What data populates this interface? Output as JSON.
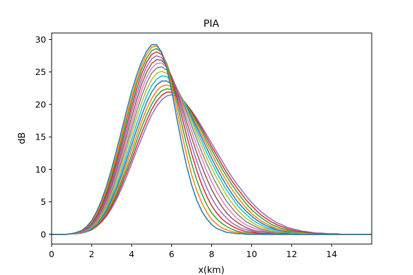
{
  "chart_data": {
    "type": "line",
    "title": "PIA",
    "xlabel": "x(km)",
    "ylabel": "dB",
    "xlim": [
      0,
      16
    ],
    "ylim": [
      -1.5,
      31
    ],
    "xticks": [
      0,
      2,
      4,
      6,
      8,
      10,
      12,
      14
    ],
    "yticks": [
      0,
      5,
      10,
      15,
      20,
      25,
      30
    ],
    "grid": false,
    "legend": "none",
    "x_step": 0.25,
    "x": [
      0,
      0.25,
      0.5,
      0.75,
      1,
      1.25,
      1.5,
      1.75,
      2,
      2.25,
      2.5,
      2.75,
      3,
      3.25,
      3.5,
      3.75,
      4,
      4.25,
      4.5,
      4.75,
      5,
      5.25,
      5.5,
      5.75,
      6,
      6.25,
      6.5,
      6.75,
      7,
      7.25,
      7.5,
      7.75,
      8,
      8.25,
      8.5,
      8.75,
      9,
      9.25,
      9.5,
      9.75,
      10,
      10.25,
      10.5,
      10.75,
      11,
      11.25,
      11.5,
      11.75,
      12,
      12.25,
      12.5,
      12.75,
      13,
      13.25,
      13.5,
      13.75,
      14,
      14.25,
      14.5,
      14.75,
      15,
      15.25,
      15.5,
      15.75,
      16
    ],
    "colors": [
      "#1f77b4",
      "#ff7f0e",
      "#2ca02c",
      "#d62728",
      "#9467bd",
      "#8c564b",
      "#e377c2",
      "#7f7f7f",
      "#bcbd22",
      "#17becf",
      "#1f77b4",
      "#ff7f0e",
      "#2ca02c",
      "#d62728",
      "#9467bd"
    ],
    "series": [
      {
        "values": [
          0,
          0,
          0,
          0,
          0.1,
          0.3,
          0.6,
          1.2,
          2.1,
          3.5,
          5.3,
          7.5,
          10.1,
          13.0,
          16.0,
          19.1,
          22.0,
          24.5,
          26.6,
          28.2,
          29.2,
          29.2,
          28.0,
          25.6,
          22.1,
          18.0,
          14.0,
          10.5,
          7.6,
          5.3,
          3.6,
          2.4,
          1.5,
          0.9,
          0.6,
          0.3,
          0.2,
          0.1,
          0.1,
          0,
          0,
          0,
          0,
          0,
          0,
          0,
          0,
          0,
          0,
          0,
          0,
          0,
          0,
          0,
          0,
          0,
          0,
          0,
          0,
          0,
          0,
          0,
          0,
          0,
          0
        ]
      },
      {
        "values": [
          0,
          0,
          0,
          0,
          0.1,
          0.2,
          0.5,
          1.1,
          1.9,
          3.2,
          4.9,
          7.0,
          9.5,
          12.3,
          15.3,
          18.3,
          21.2,
          23.8,
          26.0,
          27.7,
          28.8,
          29.0,
          28.1,
          26.0,
          22.9,
          19.3,
          15.6,
          12.2,
          9.2,
          6.8,
          4.9,
          3.4,
          2.3,
          1.6,
          1.0,
          0.7,
          0.4,
          0.3,
          0.2,
          0.1,
          0.1,
          0,
          0,
          0,
          0,
          0,
          0,
          0,
          0,
          0,
          0,
          0,
          0,
          0,
          0,
          0,
          0,
          0,
          0,
          0,
          0,
          0,
          0,
          0,
          0
        ]
      },
      {
        "values": [
          0,
          0,
          0,
          0,
          0.1,
          0.2,
          0.5,
          1.0,
          1.8,
          3.0,
          4.6,
          6.6,
          9.0,
          11.7,
          14.6,
          17.6,
          20.5,
          23.2,
          25.4,
          27.1,
          28.3,
          28.6,
          28.0,
          26.3,
          23.6,
          20.4,
          17.0,
          13.8,
          10.9,
          8.4,
          6.3,
          4.6,
          3.3,
          2.4,
          1.7,
          1.2,
          0.8,
          0.5,
          0.3,
          0.2,
          0.1,
          0.1,
          0,
          0,
          0,
          0,
          0,
          0,
          0,
          0,
          0,
          0,
          0,
          0,
          0,
          0,
          0,
          0,
          0,
          0,
          0,
          0,
          0,
          0,
          0
        ]
      },
      {
        "values": [
          0,
          0,
          0,
          0,
          0.1,
          0.2,
          0.4,
          0.9,
          1.7,
          2.8,
          4.3,
          6.2,
          8.5,
          11.1,
          13.9,
          16.8,
          19.7,
          22.4,
          24.7,
          26.5,
          27.7,
          28.1,
          27.7,
          26.3,
          24.0,
          21.2,
          18.2,
          15.2,
          12.4,
          9.9,
          7.7,
          5.9,
          4.4,
          3.3,
          2.4,
          1.8,
          1.3,
          0.9,
          0.6,
          0.4,
          0.3,
          0.2,
          0.1,
          0.1,
          0,
          0,
          0,
          0,
          0,
          0,
          0,
          0,
          0,
          0,
          0,
          0,
          0,
          0,
          0,
          0,
          0,
          0,
          0,
          0,
          0
        ]
      },
      {
        "values": [
          0,
          0,
          0,
          0,
          0.1,
          0.2,
          0.4,
          0.8,
          1.5,
          2.6,
          4.0,
          5.8,
          8.0,
          10.5,
          13.2,
          16.0,
          18.9,
          21.6,
          23.9,
          25.8,
          27.0,
          27.5,
          27.2,
          26.1,
          24.2,
          21.8,
          19.1,
          16.4,
          13.7,
          11.3,
          9.1,
          7.2,
          5.6,
          4.3,
          3.3,
          2.5,
          1.8,
          1.3,
          0.9,
          0.7,
          0.5,
          0.3,
          0.2,
          0.1,
          0.1,
          0.1,
          0,
          0,
          0,
          0,
          0,
          0,
          0,
          0,
          0,
          0,
          0,
          0,
          0,
          0,
          0,
          0,
          0,
          0,
          0
        ]
      },
      {
        "values": [
          0,
          0,
          0,
          0,
          0.1,
          0.2,
          0.4,
          0.8,
          1.4,
          2.4,
          3.7,
          5.4,
          7.5,
          9.9,
          12.5,
          15.2,
          18.0,
          20.7,
          23.1,
          25.0,
          26.3,
          26.9,
          26.8,
          25.9,
          24.3,
          22.2,
          19.8,
          17.3,
          14.9,
          12.6,
          10.5,
          8.6,
          6.9,
          5.5,
          4.3,
          3.3,
          2.5,
          1.9,
          1.4,
          1.0,
          0.7,
          0.5,
          0.4,
          0.3,
          0.2,
          0.1,
          0.1,
          0.1,
          0,
          0,
          0,
          0,
          0,
          0,
          0,
          0,
          0,
          0,
          0,
          0,
          0,
          0,
          0,
          0,
          0
        ]
      },
      {
        "values": [
          0,
          0,
          0,
          0,
          0.1,
          0.2,
          0.3,
          0.7,
          1.3,
          2.2,
          3.4,
          5.0,
          7.0,
          9.3,
          11.8,
          14.4,
          17.1,
          19.8,
          22.2,
          24.2,
          25.6,
          26.3,
          26.4,
          25.7,
          24.3,
          22.5,
          20.4,
          18.1,
          15.9,
          13.7,
          11.7,
          9.8,
          8.1,
          6.6,
          5.3,
          4.2,
          3.3,
          2.5,
          1.9,
          1.4,
          1.1,
          0.8,
          0.6,
          0.4,
          0.3,
          0.2,
          0.1,
          0.1,
          0.1,
          0,
          0,
          0,
          0,
          0,
          0,
          0,
          0,
          0,
          0,
          0,
          0,
          0,
          0,
          0,
          0
        ]
      },
      {
        "values": [
          0,
          0,
          0,
          0,
          0.1,
          0.1,
          0.3,
          0.6,
          1.2,
          2.0,
          3.2,
          4.7,
          6.6,
          8.8,
          11.2,
          13.7,
          16.3,
          18.9,
          21.3,
          23.3,
          24.8,
          25.6,
          25.8,
          25.3,
          24.2,
          22.6,
          20.8,
          18.8,
          16.7,
          14.7,
          12.7,
          10.9,
          9.2,
          7.7,
          6.3,
          5.1,
          4.1,
          3.2,
          2.5,
          1.9,
          1.5,
          1.1,
          0.8,
          0.6,
          0.4,
          0.3,
          0.2,
          0.2,
          0.1,
          0.1,
          0,
          0,
          0,
          0,
          0,
          0,
          0,
          0,
          0,
          0,
          0,
          0,
          0,
          0,
          0
        ]
      },
      {
        "values": [
          0,
          0,
          0,
          0,
          0.1,
          0.1,
          0.3,
          0.6,
          1.1,
          1.8,
          2.9,
          4.3,
          6.1,
          8.2,
          10.5,
          13.0,
          15.5,
          18.0,
          20.3,
          22.3,
          23.8,
          24.8,
          25.1,
          24.8,
          23.9,
          22.6,
          21.0,
          19.2,
          17.3,
          15.4,
          13.6,
          11.8,
          10.2,
          8.7,
          7.3,
          6.0,
          4.9,
          3.9,
          3.1,
          2.4,
          1.9,
          1.4,
          1.1,
          0.8,
          0.6,
          0.4,
          0.3,
          0.2,
          0.2,
          0.1,
          0.1,
          0.1,
          0,
          0,
          0,
          0,
          0,
          0,
          0,
          0,
          0,
          0,
          0,
          0,
          0
        ]
      },
      {
        "values": [
          0,
          0,
          0,
          0,
          0.1,
          0.1,
          0.3,
          0.5,
          1.0,
          1.7,
          2.7,
          4.0,
          5.7,
          7.6,
          9.8,
          12.2,
          14.6,
          17.0,
          19.3,
          21.3,
          22.9,
          23.9,
          24.4,
          24.3,
          23.6,
          22.5,
          21.1,
          19.5,
          17.8,
          16.0,
          14.3,
          12.6,
          11.0,
          9.5,
          8.1,
          6.8,
          5.7,
          4.6,
          3.7,
          3.0,
          2.3,
          1.8,
          1.4,
          1.0,
          0.8,
          0.6,
          0.4,
          0.3,
          0.2,
          0.2,
          0.1,
          0.1,
          0.1,
          0,
          0,
          0,
          0,
          0,
          0,
          0,
          0,
          0,
          0,
          0,
          0
        ]
      },
      {
        "values": [
          0,
          0,
          0,
          0,
          0.1,
          0.1,
          0.2,
          0.5,
          0.9,
          1.6,
          2.5,
          3.7,
          5.3,
          7.1,
          9.2,
          11.5,
          13.8,
          16.1,
          18.3,
          20.3,
          21.9,
          23.0,
          23.6,
          23.6,
          23.2,
          22.3,
          21.1,
          19.7,
          18.1,
          16.5,
          14.9,
          13.3,
          11.7,
          10.2,
          8.8,
          7.5,
          6.3,
          5.2,
          4.3,
          3.5,
          2.8,
          2.2,
          1.7,
          1.3,
          1.0,
          0.7,
          0.5,
          0.4,
          0.3,
          0.2,
          0.1,
          0.1,
          0.1,
          0.1,
          0,
          0,
          0,
          0,
          0,
          0,
          0,
          0,
          0,
          0,
          0
        ]
      },
      {
        "values": [
          0,
          0,
          0,
          0,
          0.1,
          0.1,
          0.2,
          0.5,
          0.9,
          1.5,
          2.3,
          3.5,
          4.9,
          6.6,
          8.6,
          10.8,
          13.0,
          15.2,
          17.4,
          19.3,
          20.9,
          22.1,
          22.8,
          23.0,
          22.7,
          22.0,
          21.0,
          19.8,
          18.4,
          16.9,
          15.4,
          13.9,
          12.4,
          10.9,
          9.5,
          8.2,
          7.0,
          5.9,
          4.9,
          4.0,
          3.2,
          2.6,
          2.0,
          1.6,
          1.2,
          0.9,
          0.7,
          0.5,
          0.4,
          0.3,
          0.2,
          0.1,
          0.1,
          0.1,
          0,
          0,
          0,
          0,
          0,
          0,
          0,
          0,
          0,
          0,
          0
        ]
      },
      {
        "values": [
          0,
          0,
          0,
          0,
          0.1,
          0.1,
          0.2,
          0.4,
          0.8,
          1.4,
          2.2,
          3.3,
          4.6,
          6.2,
          8.1,
          10.1,
          12.2,
          14.4,
          16.5,
          18.4,
          20.0,
          21.3,
          22.1,
          22.4,
          22.3,
          21.8,
          21.0,
          19.9,
          18.7,
          17.3,
          15.9,
          14.4,
          13.0,
          11.6,
          10.2,
          8.9,
          7.7,
          6.6,
          5.6,
          4.6,
          3.8,
          3.1,
          2.5,
          2.0,
          1.5,
          1.2,
          0.9,
          0.7,
          0.5,
          0.4,
          0.3,
          0.2,
          0.1,
          0.1,
          0.1,
          0.1,
          0,
          0,
          0,
          0,
          0,
          0,
          0,
          0,
          0
        ]
      },
      {
        "values": [
          0,
          0,
          0,
          0,
          0.1,
          0.1,
          0.2,
          0.4,
          0.7,
          1.3,
          2.0,
          3.0,
          4.3,
          5.8,
          7.6,
          9.5,
          11.5,
          13.6,
          15.6,
          17.5,
          19.2,
          20.5,
          21.4,
          21.9,
          21.9,
          21.6,
          20.9,
          20.0,
          18.9,
          17.6,
          16.3,
          14.9,
          13.5,
          12.2,
          10.8,
          9.5,
          8.3,
          7.2,
          6.2,
          5.2,
          4.4,
          3.6,
          2.9,
          2.4,
          1.9,
          1.5,
          1.2,
          0.9,
          0.7,
          0.5,
          0.4,
          0.3,
          0.2,
          0.1,
          0.1,
          0.1,
          0,
          0,
          0,
          0,
          0,
          0,
          0,
          0,
          0
        ]
      },
      {
        "values": [
          0,
          0,
          0,
          0,
          0.1,
          0.1,
          0.2,
          0.4,
          0.7,
          1.2,
          1.9,
          2.8,
          4.0,
          5.4,
          7.1,
          8.9,
          10.9,
          12.9,
          14.8,
          16.7,
          18.4,
          19.7,
          20.7,
          21.3,
          21.5,
          21.3,
          20.8,
          20.0,
          19.0,
          17.9,
          16.6,
          15.3,
          14.0,
          12.7,
          11.4,
          10.1,
          8.9,
          7.8,
          6.8,
          5.8,
          4.9,
          4.1,
          3.4,
          2.8,
          2.3,
          1.8,
          1.5,
          1.1,
          0.9,
          0.7,
          0.5,
          0.4,
          0.3,
          0.2,
          0.2,
          0.1,
          0.1,
          0.1,
          0,
          0,
          0,
          0,
          0,
          0,
          0
        ]
      }
    ]
  }
}
